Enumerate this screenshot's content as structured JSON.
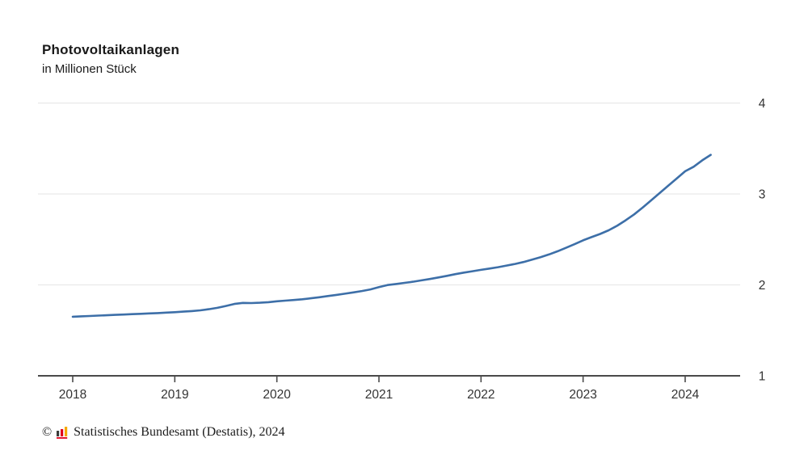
{
  "page": {
    "background": "#ffffff"
  },
  "header": {
    "title": "Photovoltaikanlagen",
    "subtitle": "in Millionen Stück"
  },
  "source": {
    "copyright": "©",
    "icon": "destatis-bar-chart-icon",
    "text": "Statistisches Bundesamt (Destatis), 2024"
  },
  "chart_data": {
    "type": "line",
    "title": "Photovoltaikanlagen",
    "subtitle": "in Millionen Stück",
    "ylabel": "in Millionen Stück",
    "xlabel": "",
    "legend": "none",
    "grid": "horizontal",
    "y_axis_side": "right",
    "x_ticks": [
      2018,
      2019,
      2020,
      2021,
      2022,
      2023,
      2024
    ],
    "y_ticks": [
      1,
      2,
      3,
      4
    ],
    "ylim": [
      1,
      4
    ],
    "xlim": [
      2017.66,
      2024.54
    ],
    "colors": {
      "line": "#3d6fa8",
      "grid": "#e9e9e9",
      "axis": "#4a4a4a",
      "tick_text": "#333333"
    },
    "series": [
      {
        "name": "Photovoltaikanlagen",
        "x_start": 2018.0,
        "x_interval": "monthly",
        "x": [
          2018.0,
          2018.083,
          2018.167,
          2018.25,
          2018.333,
          2018.417,
          2018.5,
          2018.583,
          2018.667,
          2018.75,
          2018.833,
          2018.917,
          2019.0,
          2019.083,
          2019.167,
          2019.25,
          2019.333,
          2019.417,
          2019.5,
          2019.583,
          2019.667,
          2019.75,
          2019.833,
          2019.917,
          2020.0,
          2020.083,
          2020.167,
          2020.25,
          2020.333,
          2020.417,
          2020.5,
          2020.583,
          2020.667,
          2020.75,
          2020.833,
          2020.917,
          2021.0,
          2021.083,
          2021.167,
          2021.25,
          2021.333,
          2021.417,
          2021.5,
          2021.583,
          2021.667,
          2021.75,
          2021.833,
          2021.917,
          2022.0,
          2022.083,
          2022.167,
          2022.25,
          2022.333,
          2022.417,
          2022.5,
          2022.583,
          2022.667,
          2022.75,
          2022.833,
          2022.917,
          2023.0,
          2023.083,
          2023.167,
          2023.25,
          2023.333,
          2023.417,
          2023.5,
          2023.583,
          2023.667,
          2023.75,
          2023.833,
          2023.917,
          2024.0,
          2024.083,
          2024.167,
          2024.25
        ],
        "values": [
          1.65,
          1.654,
          1.658,
          1.662,
          1.666,
          1.67,
          1.674,
          1.678,
          1.682,
          1.686,
          1.69,
          1.695,
          1.7,
          1.706,
          1.712,
          1.72,
          1.732,
          1.748,
          1.768,
          1.79,
          1.802,
          1.8,
          1.804,
          1.81,
          1.82,
          1.827,
          1.834,
          1.842,
          1.852,
          1.864,
          1.877,
          1.89,
          1.903,
          1.917,
          1.932,
          1.95,
          1.975,
          1.998,
          2.01,
          2.022,
          2.035,
          2.05,
          2.065,
          2.082,
          2.1,
          2.118,
          2.135,
          2.15,
          2.165,
          2.18,
          2.195,
          2.212,
          2.23,
          2.252,
          2.278,
          2.305,
          2.335,
          2.37,
          2.408,
          2.448,
          2.49,
          2.525,
          2.56,
          2.6,
          2.65,
          2.71,
          2.775,
          2.85,
          2.93,
          3.01,
          3.09,
          3.17,
          3.25,
          3.3,
          3.37,
          3.43
        ]
      }
    ]
  }
}
